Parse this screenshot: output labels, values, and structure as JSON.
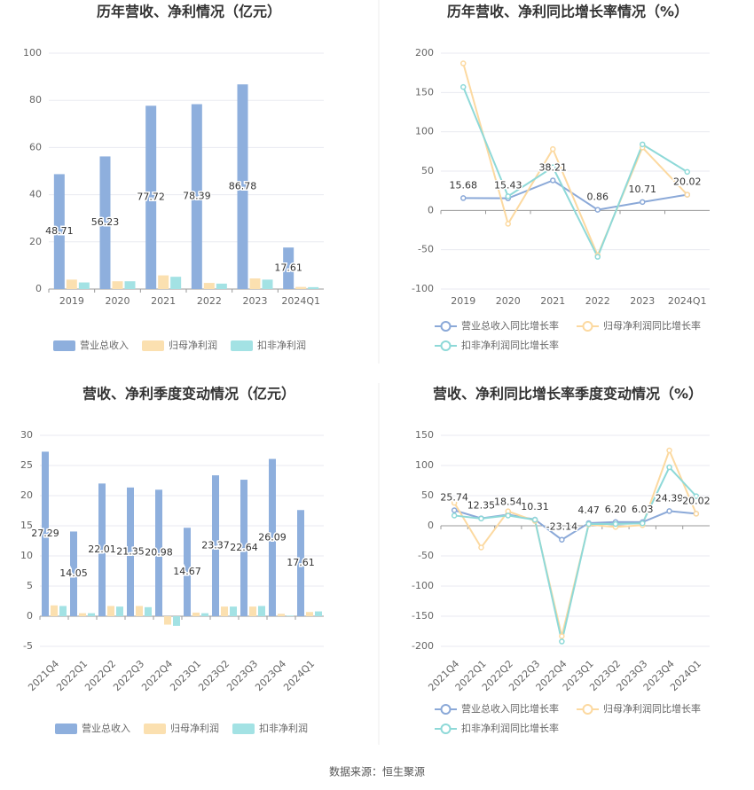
{
  "chart_data": [
    {
      "type": "bar",
      "title": "历年营收、净利情况（亿元）",
      "categories": [
        "2019",
        "2020",
        "2021",
        "2022",
        "2023",
        "2024Q1"
      ],
      "series": [
        {
          "name": "营业总收入",
          "color": "#8eafdd",
          "data_labels": true,
          "values": [
            48.71,
            56.23,
            77.72,
            78.39,
            86.78,
            17.61
          ]
        },
        {
          "name": "归母净利润",
          "color": "#fbe0b0",
          "values": [
            4.0,
            3.3,
            5.8,
            2.6,
            4.5,
            0.9
          ]
        },
        {
          "name": "扣非净利润",
          "color": "#a3e2e4",
          "values": [
            2.8,
            3.3,
            5.2,
            2.3,
            4.0,
            0.8
          ]
        }
      ],
      "ylim": [
        0,
        100
      ],
      "yticks": [
        0,
        20,
        40,
        60,
        80,
        100
      ],
      "grid": true
    },
    {
      "type": "line",
      "title": "历年营收、净利同比增长率情况（%）",
      "categories": [
        "2019",
        "2020",
        "2021",
        "2022",
        "2023",
        "2024Q1"
      ],
      "series": [
        {
          "name": "营业总收入同比增长率",
          "color": "#8ba9d8",
          "data_labels": true,
          "values": [
            15.68,
            15.43,
            38.21,
            0.86,
            10.71,
            20.02
          ]
        },
        {
          "name": "归母净利润同比增长率",
          "color": "#fcd9a0",
          "values": [
            187,
            -17,
            78,
            -57,
            80,
            20
          ]
        },
        {
          "name": "扣非净利润同比增长率",
          "color": "#8ed9d8",
          "values": [
            157,
            18,
            55,
            -59,
            84,
            49
          ]
        }
      ],
      "ylim": [
        -100,
        200
      ],
      "yticks": [
        -100,
        -50,
        0,
        50,
        100,
        150,
        200
      ],
      "grid": true
    },
    {
      "type": "bar",
      "title": "营收、净利季度变动情况（亿元）",
      "categories": [
        "2021Q4",
        "2022Q1",
        "2022Q2",
        "2022Q3",
        "2022Q4",
        "2023Q1",
        "2023Q2",
        "2023Q3",
        "2023Q4",
        "2024Q1"
      ],
      "series": [
        {
          "name": "营业总收入",
          "color": "#8eafdd",
          "data_labels": true,
          "values": [
            27.29,
            14.05,
            22.01,
            21.35,
            20.98,
            14.67,
            23.37,
            22.64,
            26.09,
            17.61
          ]
        },
        {
          "name": "归母净利润",
          "color": "#fbe0b0",
          "values": [
            1.8,
            0.5,
            1.7,
            1.7,
            -1.4,
            0.6,
            1.6,
            1.6,
            0.4,
            0.7
          ]
        },
        {
          "name": "扣非净利润",
          "color": "#a3e2e4",
          "values": [
            1.7,
            0.5,
            1.6,
            1.5,
            -1.6,
            0.5,
            1.6,
            1.7,
            0.1,
            0.8
          ]
        }
      ],
      "ylim": [
        -5,
        30
      ],
      "yticks": [
        -5,
        0,
        5,
        10,
        15,
        20,
        25,
        30
      ],
      "grid": true
    },
    {
      "type": "line",
      "title": "营收、净利同比增长率季度变动情况（%）",
      "categories": [
        "2021Q4",
        "2022Q1",
        "2022Q2",
        "2022Q3",
        "2022Q4",
        "2023Q1",
        "2023Q2",
        "2023Q3",
        "2023Q4",
        "2024Q1"
      ],
      "series": [
        {
          "name": "营业总收入同比增长率",
          "color": "#8ba9d8",
          "values": [
            25.74,
            12.35,
            18.54,
            10.31,
            -23.14,
            4.47,
            6.2,
            6.03,
            24.39,
            20.02
          ],
          "value_labels": [
            "25.74",
            "12.35",
            "18.54",
            "10.31",
            "-23.14",
            "4.47",
            "6.20",
            "6.03",
            "24.39",
            "20.02"
          ]
        },
        {
          "name": "归母净利润同比增长率",
          "color": "#fcd9a0",
          "values": [
            38,
            -36,
            24,
            8,
            -183,
            2,
            -2,
            1,
            125,
            20
          ]
        },
        {
          "name": "扣非净利润同比增长率",
          "color": "#8ed9d8",
          "values": [
            17,
            12,
            17,
            10,
            -192,
            3,
            3,
            4,
            97,
            49
          ]
        }
      ],
      "ylim": [
        -200,
        150
      ],
      "yticks": [
        -200,
        -150,
        -100,
        -50,
        0,
        50,
        100,
        150
      ],
      "grid": true
    }
  ],
  "source": "数据来源：恒生聚源"
}
